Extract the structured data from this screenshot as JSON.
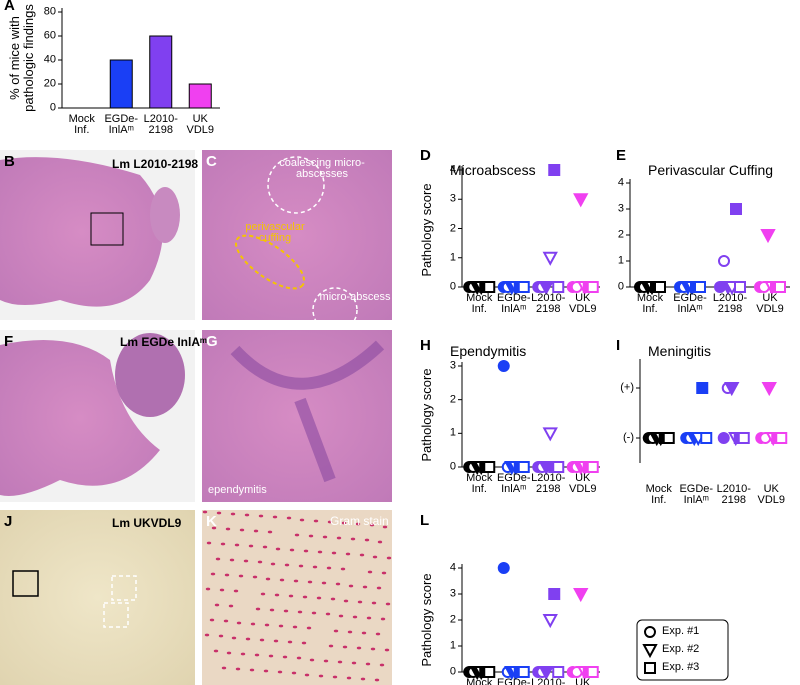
{
  "legend": [
    {
      "name": "Exp. #1",
      "marker": "circle"
    },
    {
      "name": "Exp. #2",
      "marker": "triangle"
    },
    {
      "name": "Exp. #3",
      "marker": "square"
    }
  ],
  "images": [
    {
      "label": "B",
      "texts": [
        "Lm L2010-2198"
      ]
    },
    {
      "label": "C",
      "texts": [
        "coalescing micro-abscesses",
        "perivascular cuffing",
        "micro-abscess"
      ]
    },
    {
      "label": "F",
      "texts": [
        "Lm EGDe InlAᵐ"
      ]
    },
    {
      "label": "G",
      "texts": [
        "ependymitis"
      ]
    },
    {
      "label": "J",
      "texts": [
        "Lm UKVDL9"
      ]
    },
    {
      "label": "K",
      "texts": [
        "Gram stain"
      ]
    }
  ],
  "chart_data": [
    {
      "type": "bar",
      "label": "A",
      "ylabel": "% of mice with\npathologic findings",
      "categories": [
        "Mock\nInf.",
        "EGDe-\nInlAᵐ",
        "L2010-\n2198",
        "UK\nVDL9"
      ],
      "values": [
        0,
        40,
        60,
        20
      ],
      "colors": [
        "#000000",
        "#1a3ff5",
        "#8040f0",
        "#f040f0"
      ],
      "ylim": [
        0,
        80
      ],
      "yticks": [
        0,
        20,
        40,
        60,
        80
      ]
    },
    {
      "type": "dot",
      "label": "D",
      "title": "Microabscess",
      "ylabel": "Pathology score",
      "categories": [
        "Mock\nInf.",
        "EGDe-\nInlAᵐ",
        "L2010-\n2198",
        "UK\nVDL9"
      ],
      "colors": [
        "#000000",
        "#1a3ff5",
        "#8040f0",
        "#f040f0"
      ],
      "ylim": [
        0,
        4
      ],
      "yticks": [
        0,
        1,
        2,
        3,
        4
      ],
      "series": [
        {
          "marker": "circle",
          "values": [
            [
              0,
              0
            ],
            [
              0,
              0
            ],
            [
              0,
              0
            ],
            [
              0,
              0
            ]
          ]
        },
        {
          "marker": "triangle",
          "values": [
            [
              0,
              0
            ],
            [
              0,
              0
            ],
            [
              0,
              1
            ],
            [
              3,
              0
            ]
          ]
        },
        {
          "marker": "square",
          "values": [
            [
              0,
              0
            ],
            [
              0,
              0
            ],
            [
              4,
              0
            ],
            [
              0,
              0
            ]
          ]
        }
      ]
    },
    {
      "type": "dot",
      "label": "E",
      "title": "Perivascular Cuffing",
      "categories": [
        "Mock\nInf.",
        "EGDe-\nInlAᵐ",
        "L2010-\n2198",
        "UK\nVDL9"
      ],
      "colors": [
        "#000000",
        "#1a3ff5",
        "#8040f0",
        "#f040f0"
      ],
      "ylim": [
        0,
        4
      ],
      "yticks": [
        0,
        1,
        2,
        3,
        4
      ],
      "series": [
        {
          "marker": "circle",
          "values": [
            [
              0,
              0
            ],
            [
              0,
              0
            ],
            [
              0,
              1
            ],
            [
              0,
              0
            ]
          ]
        },
        {
          "marker": "triangle",
          "values": [
            [
              0,
              0
            ],
            [
              0,
              0
            ],
            [
              0,
              0
            ],
            [
              2,
              0
            ]
          ]
        },
        {
          "marker": "square",
          "values": [
            [
              0,
              0
            ],
            [
              0,
              0
            ],
            [
              3,
              0
            ],
            [
              0,
              0
            ]
          ]
        }
      ]
    },
    {
      "type": "dot",
      "label": "H",
      "title": "Ependymitis",
      "ylabel": "Pathology score",
      "categories": [
        "Mock\nInf.",
        "EGDe-\nInlAᵐ",
        "L2010-\n2198",
        "UK\nVDL9"
      ],
      "colors": [
        "#000000",
        "#1a3ff5",
        "#8040f0",
        "#f040f0"
      ],
      "ylim": [
        0,
        3
      ],
      "yticks": [
        0,
        1,
        2,
        3
      ],
      "series": [
        {
          "marker": "circle",
          "values": [
            [
              0,
              0
            ],
            [
              3,
              0
            ],
            [
              0,
              0
            ],
            [
              0,
              0
            ]
          ]
        },
        {
          "marker": "triangle",
          "values": [
            [
              0,
              0
            ],
            [
              0,
              0
            ],
            [
              0,
              1
            ],
            [
              0,
              0
            ]
          ]
        },
        {
          "marker": "square",
          "values": [
            [
              0,
              0
            ],
            [
              0,
              0
            ],
            [
              0,
              0
            ],
            [
              0,
              0
            ]
          ]
        }
      ]
    },
    {
      "type": "dot",
      "label": "I",
      "title": "Meningitis",
      "categories": [
        "Mock\nInf.",
        "EGDe-\nInlAᵐ",
        "L2010-\n2198",
        "UK\nVDL9"
      ],
      "colors": [
        "#000000",
        "#1a3ff5",
        "#8040f0",
        "#f040f0"
      ],
      "ylim": [
        -0.5,
        1.5
      ],
      "yticks": [
        {
          "value": 0,
          "label": "(-)"
        },
        {
          "value": 1,
          "label": "(+)"
        }
      ],
      "series": [
        {
          "marker": "circle",
          "values": [
            [
              0,
              0
            ],
            [
              0,
              0
            ],
            [
              0,
              1
            ],
            [
              0,
              0
            ]
          ]
        },
        {
          "marker": "triangle",
          "values": [
            [
              0,
              0
            ],
            [
              0,
              0
            ],
            [
              1,
              0
            ],
            [
              1,
              0
            ]
          ]
        },
        {
          "marker": "square",
          "values": [
            [
              0,
              0
            ],
            [
              1,
              0
            ],
            [
              0,
              0
            ],
            [
              0,
              0
            ]
          ]
        }
      ]
    },
    {
      "type": "dot",
      "label": "L",
      "ylabel": "Pathology score",
      "categories": [
        "Mock\nInf.",
        "EGDe-\nInlAᵐ",
        "L2010-\n2198",
        "UK\nVDL9"
      ],
      "colors": [
        "#000000",
        "#1a3ff5",
        "#8040f0",
        "#f040f0"
      ],
      "ylim": [
        0,
        4
      ],
      "yticks": [
        0,
        1,
        2,
        3,
        4
      ],
      "series": [
        {
          "marker": "circle",
          "values": [
            [
              0,
              0
            ],
            [
              4,
              0
            ],
            [
              0,
              0
            ],
            [
              0,
              0
            ]
          ]
        },
        {
          "marker": "triangle",
          "values": [
            [
              0,
              0
            ],
            [
              0,
              0
            ],
            [
              0,
              2
            ],
            [
              3,
              0
            ]
          ]
        },
        {
          "marker": "square",
          "values": [
            [
              0,
              0
            ],
            [
              0,
              0
            ],
            [
              3,
              0
            ],
            [
              0,
              0
            ]
          ]
        }
      ]
    }
  ]
}
